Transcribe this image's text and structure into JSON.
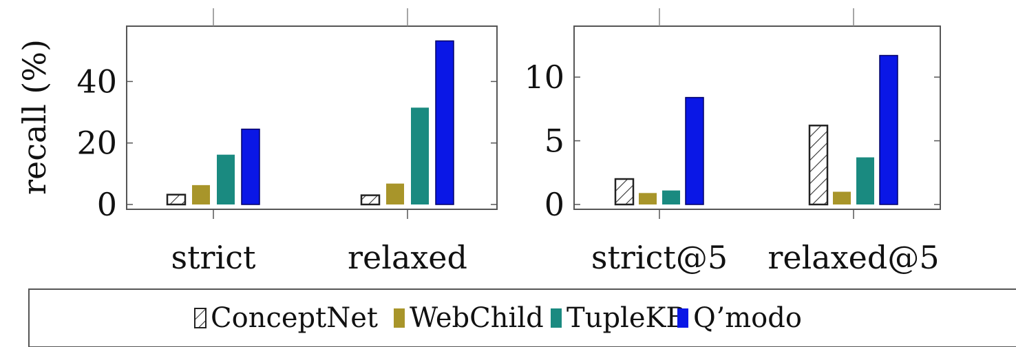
{
  "chart_data": [
    {
      "type": "bar",
      "ylabel": "recall (%)",
      "categories": [
        "strict",
        "relaxed"
      ],
      "ylim": [
        0,
        58
      ],
      "yticks": [
        0,
        20,
        40
      ],
      "series": [
        {
          "name": "ConceptNet",
          "values": [
            3.2,
            3.0
          ]
        },
        {
          "name": "WebChild",
          "values": [
            6.3,
            6.8
          ]
        },
        {
          "name": "TupleKB",
          "values": [
            16.2,
            31.5
          ]
        },
        {
          "name": "Q'modo",
          "values": [
            24.5,
            53.2
          ]
        }
      ]
    },
    {
      "type": "bar",
      "ylabel": "",
      "categories": [
        "strict@5",
        "relaxed@5"
      ],
      "ylim": [
        0,
        14
      ],
      "yticks": [
        0,
        5,
        10
      ],
      "series": [
        {
          "name": "ConceptNet",
          "values": [
            2.0,
            6.2
          ]
        },
        {
          "name": "WebChild",
          "values": [
            0.9,
            1.0
          ]
        },
        {
          "name": "TupleKB",
          "values": [
            1.1,
            3.7
          ]
        },
        {
          "name": "Q'modo",
          "values": [
            8.4,
            11.7
          ]
        }
      ]
    }
  ],
  "legend": [
    "ConceptNet",
    "WebChild",
    "TupleKB",
    "Q’modo"
  ],
  "colors": {
    "ConceptNet": "#ffffff",
    "WebChild": "#a8952a",
    "TupleKB": "#1a8a80",
    "Q'modo": "#0a17e6",
    "axis": "#555555",
    "grid": "#bbbbbb"
  }
}
